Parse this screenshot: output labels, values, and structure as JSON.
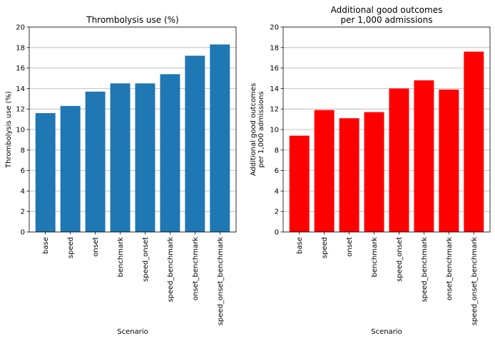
{
  "chart_data": [
    {
      "type": "bar",
      "title": [
        "Thrombolysis use (%)"
      ],
      "xlabel": "Scenario",
      "ylabel": [
        "Thrombolysis use (%)"
      ],
      "categories": [
        "base",
        "speed",
        "onset",
        "benchmark",
        "speed_onset",
        "speed_benchmark",
        "onset_benchmark",
        "speed_onset_benchmark"
      ],
      "values": [
        11.6,
        12.3,
        13.7,
        14.5,
        14.5,
        15.4,
        17.2,
        18.3
      ],
      "ylim": [
        0,
        20
      ],
      "yticks": [
        0,
        2,
        4,
        6,
        8,
        10,
        12,
        14,
        16,
        18,
        20
      ],
      "color": "#1f77b4",
      "grid": "y"
    },
    {
      "type": "bar",
      "title": [
        "Additional good outcomes",
        "per 1,000 admissions"
      ],
      "xlabel": "Scenario",
      "ylabel": [
        "Additional good outcomes",
        "per 1,000 admissions"
      ],
      "categories": [
        "base",
        "speed",
        "onset",
        "benchmark",
        "speed_onset",
        "speed_benchmark",
        "onset_benchmark",
        "speed_onset_benchmark"
      ],
      "values": [
        9.4,
        11.9,
        11.1,
        11.7,
        14.0,
        14.8,
        13.9,
        17.6
      ],
      "ylim": [
        0,
        20
      ],
      "yticks": [
        0,
        2,
        4,
        6,
        8,
        10,
        12,
        14,
        16,
        18,
        20
      ],
      "color": "#ff0000",
      "grid": "y"
    }
  ]
}
